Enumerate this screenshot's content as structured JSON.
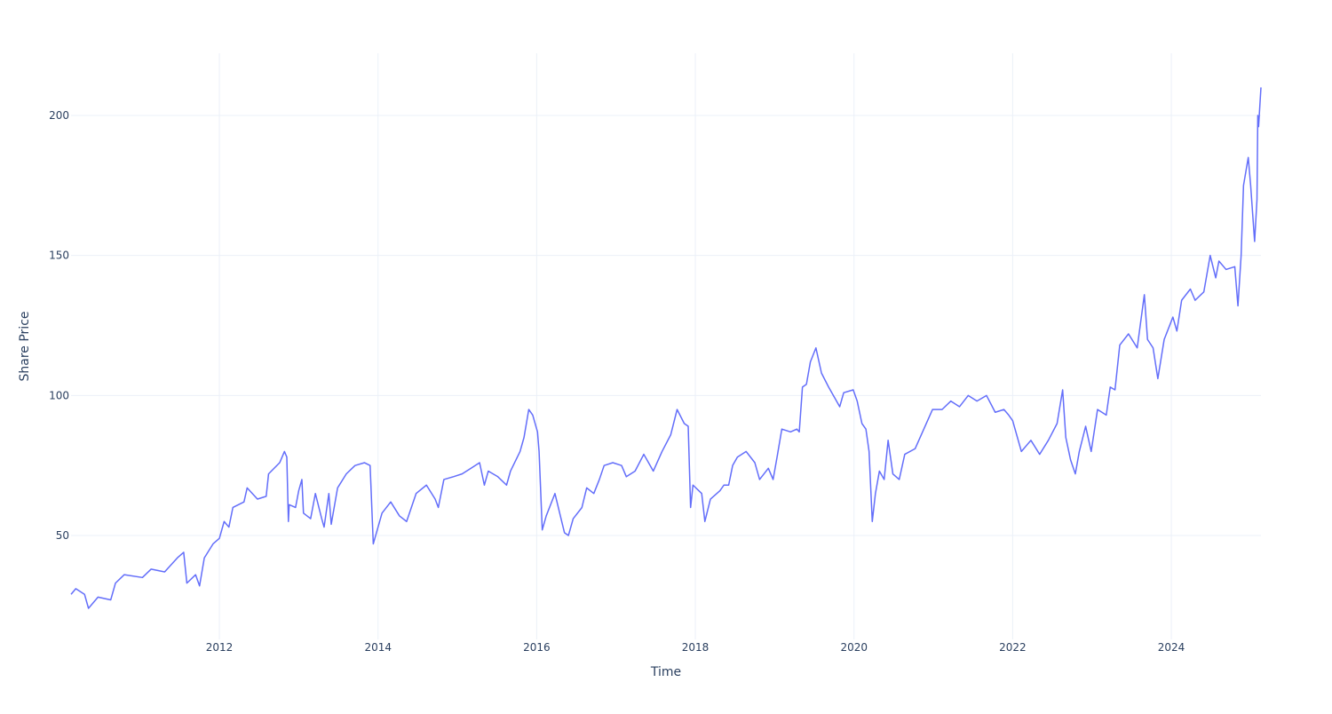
{
  "chart_data": {
    "type": "line",
    "x_label": "Time",
    "y_label": "Share Price",
    "color": "#636efa",
    "grid": true,
    "xlim": [
      2010.13,
      2025.13
    ],
    "xticks": [
      2012,
      2014,
      2016,
      2018,
      2020,
      2022,
      2024
    ],
    "ylim": [
      12.9,
      222.2
    ],
    "yticks": [
      50,
      100,
      150,
      200
    ],
    "x": [
      2010.13,
      2010.19,
      2010.3,
      2010.35,
      2010.47,
      2010.63,
      2010.69,
      2010.8,
      2011.03,
      2011.14,
      2011.31,
      2011.47,
      2011.55,
      2011.59,
      2011.7,
      2011.75,
      2011.81,
      2011.92,
      2012.0,
      2012.06,
      2012.12,
      2012.17,
      2012.31,
      2012.35,
      2012.48,
      2012.59,
      2012.62,
      2012.76,
      2012.82,
      2012.85,
      2012.87,
      2012.88,
      2012.96,
      2013.0,
      2013.04,
      2013.06,
      2013.15,
      2013.21,
      2013.29,
      2013.32,
      2013.38,
      2013.41,
      2013.49,
      2013.6,
      2013.71,
      2013.83,
      2013.9,
      2013.94,
      2013.99,
      2014.05,
      2014.16,
      2014.27,
      2014.36,
      2014.48,
      2014.61,
      2014.72,
      2014.76,
      2014.83,
      2014.95,
      2015.06,
      2015.17,
      2015.28,
      2015.34,
      2015.39,
      2015.51,
      2015.62,
      2015.67,
      2015.79,
      2015.84,
      2015.9,
      2015.95,
      2016.01,
      2016.03,
      2016.07,
      2016.12,
      2016.23,
      2016.29,
      2016.35,
      2016.4,
      2016.46,
      2016.57,
      2016.63,
      2016.72,
      2016.79,
      2016.85,
      2016.96,
      2017.07,
      2017.13,
      2017.24,
      2017.35,
      2017.41,
      2017.47,
      2017.58,
      2017.69,
      2017.77,
      2017.86,
      2017.91,
      2017.94,
      2017.97,
      2018.08,
      2018.12,
      2018.19,
      2018.31,
      2018.36,
      2018.42,
      2018.47,
      2018.53,
      2018.64,
      2018.75,
      2018.81,
      2018.92,
      2018.98,
      2019.03,
      2019.09,
      2019.2,
      2019.28,
      2019.31,
      2019.35,
      2019.4,
      2019.45,
      2019.52,
      2019.59,
      2019.68,
      2019.76,
      2019.82,
      2019.87,
      2019.99,
      2020.04,
      2020.1,
      2020.15,
      2020.19,
      2020.23,
      2020.27,
      2020.32,
      2020.38,
      2020.43,
      2020.49,
      2020.57,
      2020.64,
      2020.77,
      2020.88,
      2020.99,
      2021.11,
      2021.22,
      2021.33,
      2021.44,
      2021.55,
      2021.67,
      2021.78,
      2021.89,
      2021.95,
      2022.0,
      2022.06,
      2022.11,
      2022.23,
      2022.34,
      2022.45,
      2022.56,
      2022.63,
      2022.67,
      2022.73,
      2022.79,
      2022.84,
      2022.92,
      2022.99,
      2023.07,
      2023.18,
      2023.23,
      2023.29,
      2023.35,
      2023.46,
      2023.57,
      2023.66,
      2023.7,
      2023.77,
      2023.83,
      2023.91,
      2024.02,
      2024.07,
      2024.13,
      2024.24,
      2024.3,
      2024.41,
      2024.49,
      2024.56,
      2024.6,
      2024.69,
      2024.8,
      2024.84,
      2024.88,
      2024.91,
      2024.97,
      2025.0,
      2025.05,
      2025.08,
      2025.09,
      2025.1,
      2025.13
    ],
    "values": [
      29,
      31,
      29,
      24,
      28,
      27,
      33,
      36,
      35,
      38,
      37,
      42,
      44,
      33,
      36,
      32,
      42,
      47,
      49,
      55,
      53,
      60,
      62,
      67,
      63,
      64,
      72,
      76,
      80,
      78,
      55,
      61,
      60,
      66,
      70,
      58,
      56,
      65,
      56,
      53,
      65,
      54,
      67,
      72,
      75,
      76,
      75,
      47,
      52,
      58,
      62,
      57,
      55,
      65,
      68,
      63,
      60,
      70,
      71,
      72,
      74,
      76,
      68,
      73,
      71,
      68,
      73,
      80,
      85,
      95,
      93,
      87,
      80,
      52,
      57,
      65,
      58,
      51,
      50,
      56,
      60,
      67,
      65,
      70,
      75,
      76,
      75,
      71,
      73,
      79,
      76,
      73,
      80,
      86,
      95,
      90,
      89,
      60,
      68,
      65,
      55,
      63,
      66,
      68,
      68,
      75,
      78,
      80,
      76,
      70,
      74,
      70,
      78,
      88,
      87,
      88,
      87,
      103,
      104,
      112,
      117,
      108,
      103,
      99,
      96,
      101,
      102,
      98,
      90,
      88,
      80,
      55,
      65,
      73,
      70,
      84,
      72,
      70,
      79,
      81,
      88,
      95,
      95,
      98,
      96,
      100,
      98,
      100,
      94,
      95,
      93,
      91,
      85,
      80,
      84,
      79,
      84,
      90,
      102,
      85,
      77,
      72,
      80,
      89,
      80,
      95,
      93,
      103,
      102,
      118,
      122,
      117,
      136,
      120,
      117,
      106,
      120,
      128,
      123,
      134,
      138,
      134,
      137,
      150,
      142,
      148,
      145,
      146,
      132,
      150,
      175,
      185,
      175,
      155,
      170,
      200,
      196,
      210
    ]
  }
}
